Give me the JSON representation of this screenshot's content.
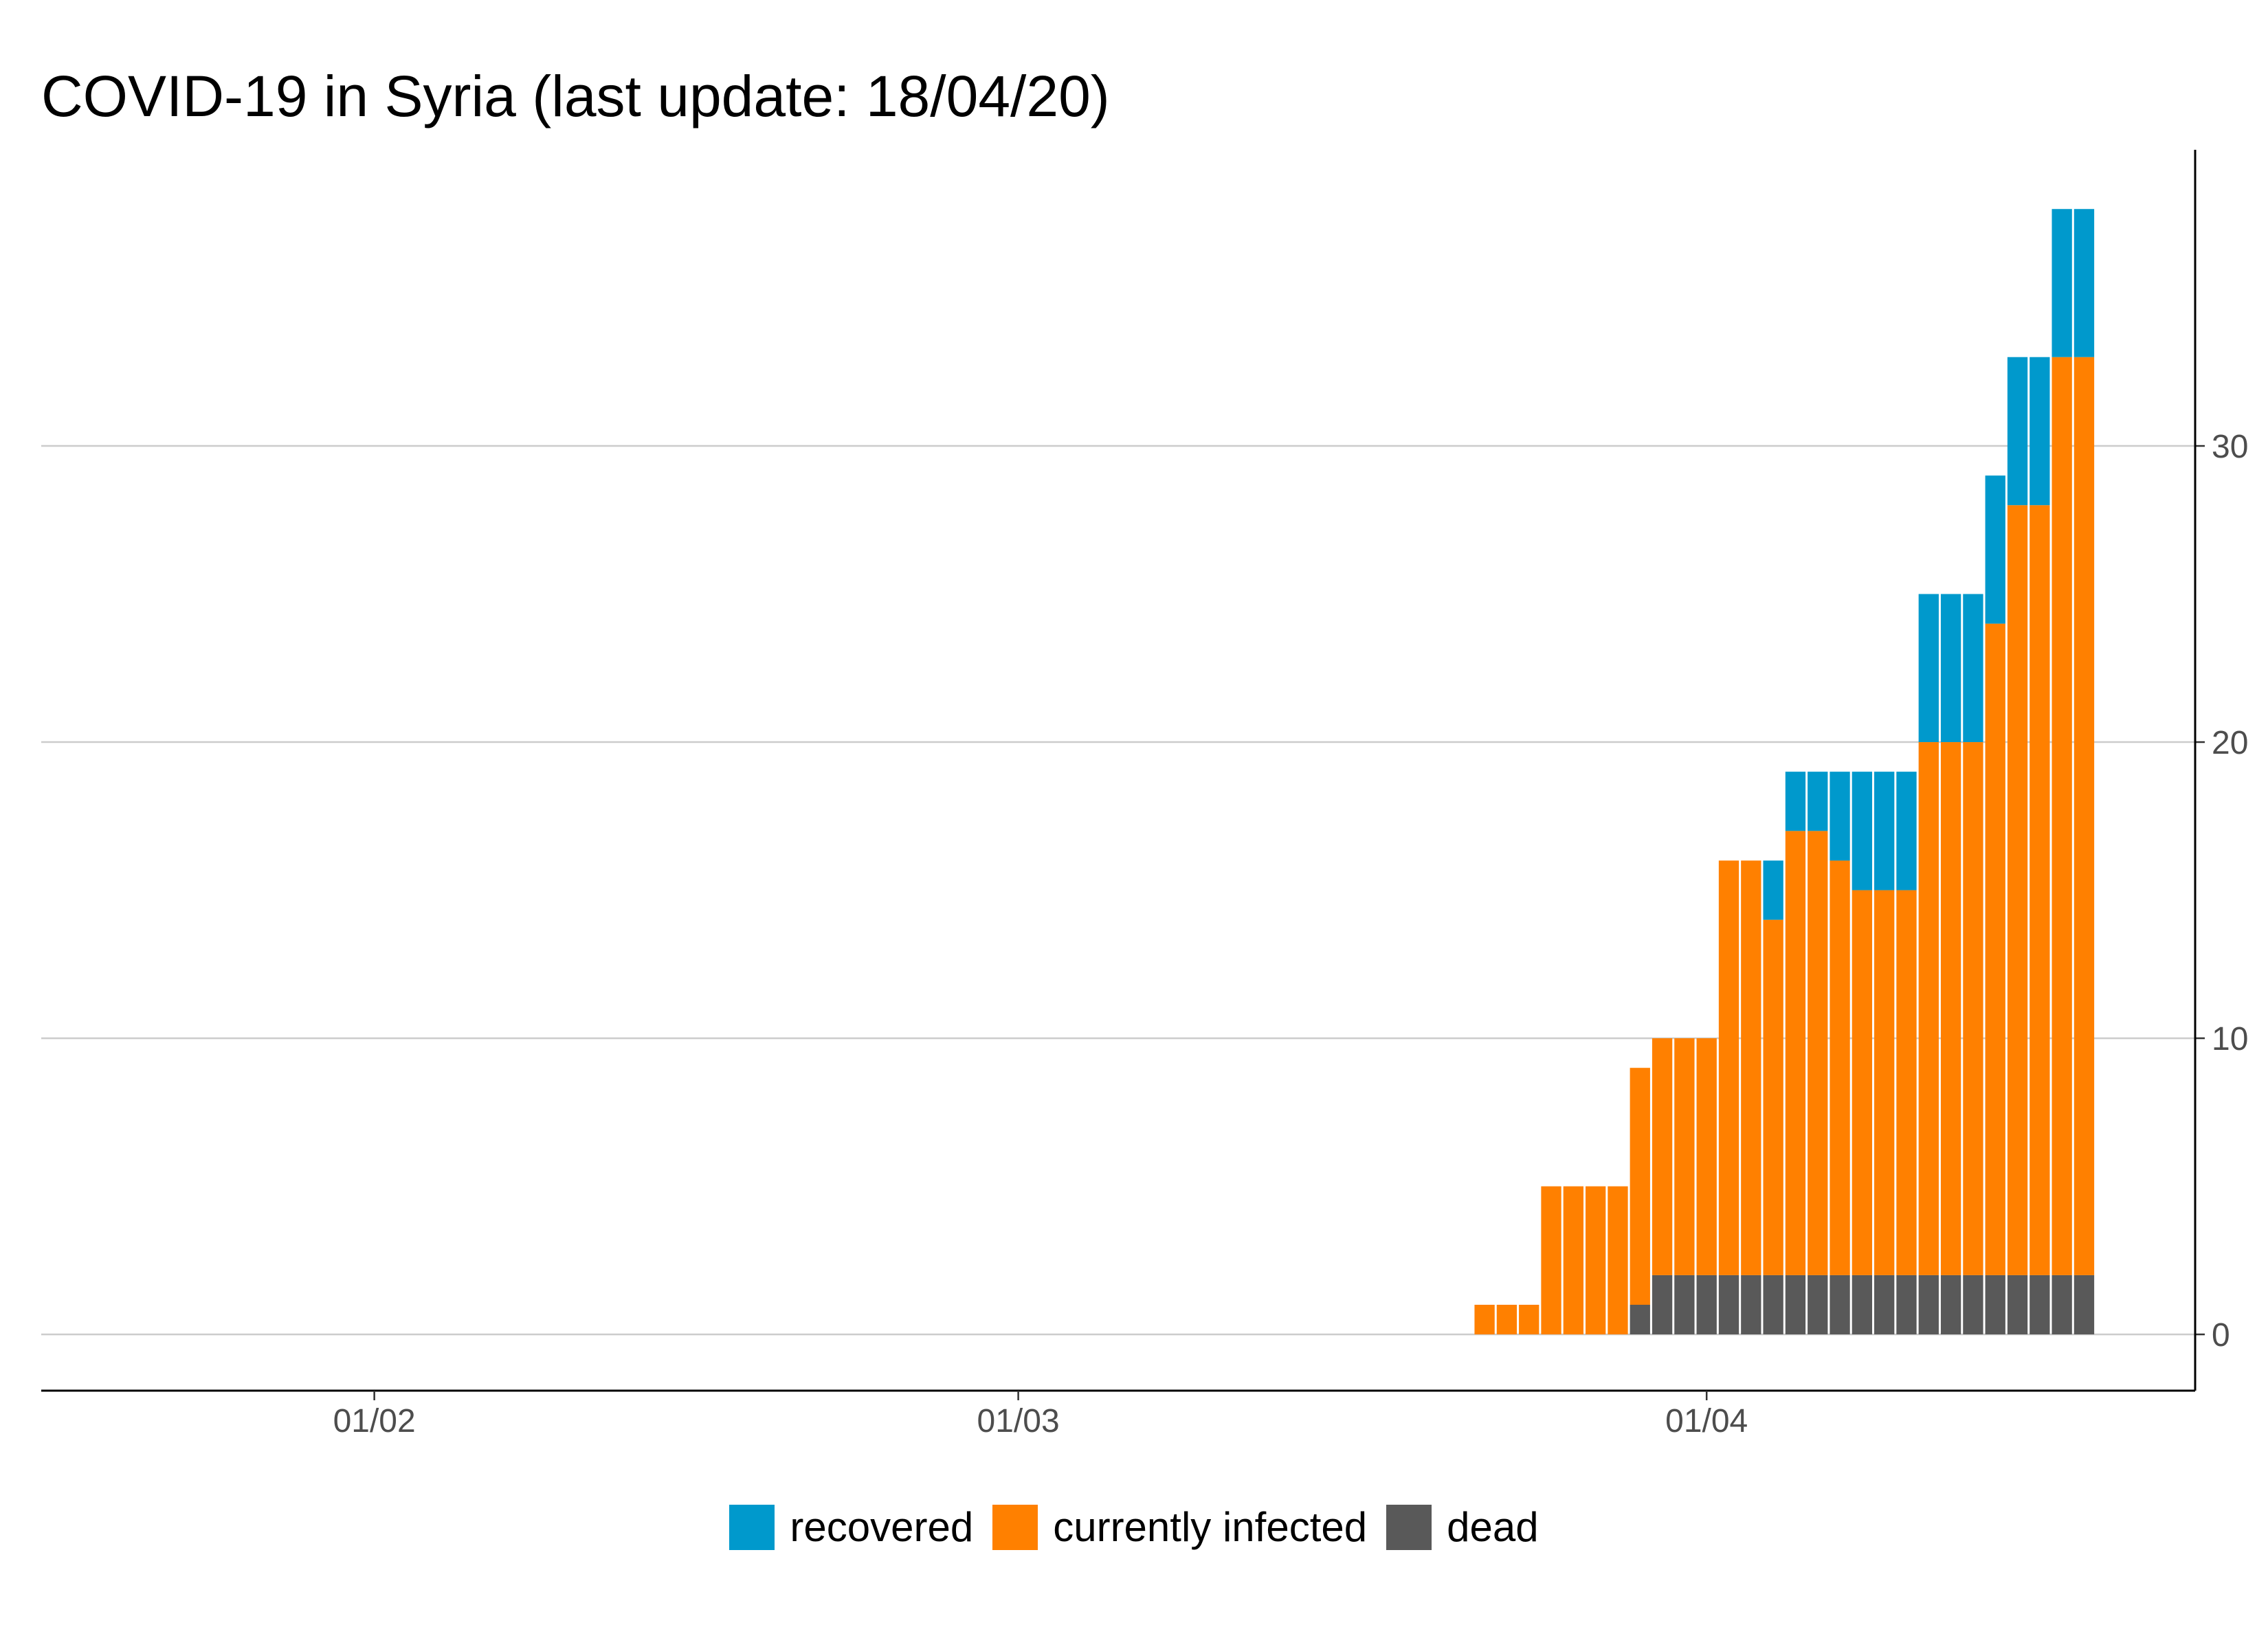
{
  "chart_data": {
    "type": "bar",
    "stacked": true,
    "title": "COVID-19 in Syria (last update: 18/04/20)",
    "xlabel": "",
    "ylabel": "",
    "x_range": [
      "2020-01-17",
      "2020-04-23"
    ],
    "ylim": [
      -1.9,
      40
    ],
    "y_axis_side": "right",
    "y_ticks": [
      0,
      10,
      20,
      30
    ],
    "y_tick_labels": [
      "0",
      "10",
      "20",
      "30"
    ],
    "x_ticks": [
      "2020-02-01",
      "2020-03-01",
      "2020-04-01"
    ],
    "x_tick_labels": [
      "01/02",
      "01/03",
      "01/04"
    ],
    "grid": "horizontal",
    "legend_position": "bottom",
    "dates": [
      "2020-03-22",
      "2020-03-23",
      "2020-03-24",
      "2020-03-25",
      "2020-03-26",
      "2020-03-27",
      "2020-03-28",
      "2020-03-29",
      "2020-03-30",
      "2020-03-31",
      "2020-04-01",
      "2020-04-02",
      "2020-04-03",
      "2020-04-04",
      "2020-04-05",
      "2020-04-06",
      "2020-04-07",
      "2020-04-08",
      "2020-04-09",
      "2020-04-10",
      "2020-04-11",
      "2020-04-12",
      "2020-04-13",
      "2020-04-14",
      "2020-04-15",
      "2020-04-16",
      "2020-04-17",
      "2020-04-18"
    ],
    "series": [
      {
        "name": "dead",
        "color": "#595959",
        "values": [
          0,
          0,
          0,
          0,
          0,
          0,
          0,
          1,
          2,
          2,
          2,
          2,
          2,
          2,
          2,
          2,
          2,
          2,
          2,
          2,
          2,
          2,
          2,
          2,
          2,
          2,
          2,
          2
        ]
      },
      {
        "name": "currently infected",
        "color": "#ff8000",
        "values": [
          1,
          1,
          1,
          5,
          5,
          5,
          5,
          8,
          8,
          8,
          8,
          14,
          14,
          12,
          15,
          15,
          14,
          13,
          13,
          13,
          18,
          18,
          18,
          22,
          26,
          26,
          31,
          31
        ]
      },
      {
        "name": "recovered",
        "color": "#0099cc",
        "values": [
          0,
          0,
          0,
          0,
          0,
          0,
          0,
          0,
          0,
          0,
          0,
          0,
          0,
          2,
          2,
          2,
          3,
          4,
          4,
          4,
          5,
          5,
          5,
          5,
          5,
          5,
          5,
          5
        ]
      }
    ]
  },
  "legend": [
    {
      "label": "recovered",
      "color": "#0099cc"
    },
    {
      "label": "currently infected",
      "color": "#ff8000"
    },
    {
      "label": "dead",
      "color": "#595959"
    }
  ]
}
